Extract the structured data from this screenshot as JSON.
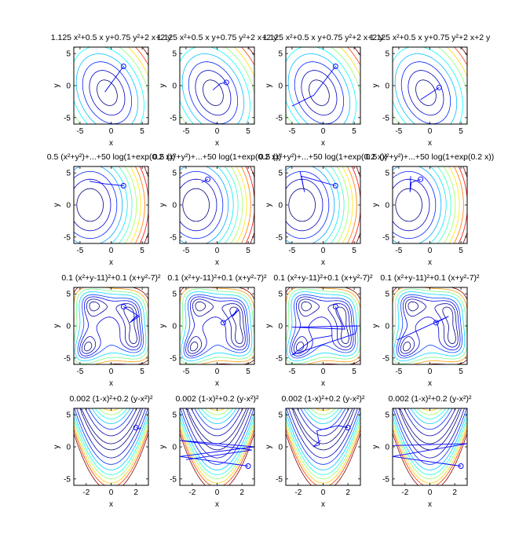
{
  "chart_data": {
    "type": "line",
    "layout": "4x4 grid of contour plots with optimizer paths",
    "colors": {
      "path": "#0000ff",
      "frame": "#000000",
      "contour_colormap": [
        "#000080",
        "#0000ff",
        "#00bfff",
        "#00ffff",
        "#7fff7f",
        "#ffff00",
        "#ff7f00",
        "#ff0000",
        "#800000"
      ]
    },
    "rows": [
      {
        "function_key": "quadratic",
        "title": "1.125 x²+0.5 x y+0.75 y²+2 x+2 y",
        "xlim": [
          -6,
          6
        ],
        "ylim": [
          -6,
          6
        ],
        "xticks": [
          -5,
          0,
          5
        ],
        "yticks": [
          -5,
          0,
          5
        ]
      },
      {
        "function_key": "logexp",
        "title": "0.5 (x²+y²)+...+50 log(1+exp(0.2 x))",
        "xlim": [
          -6,
          6
        ],
        "ylim": [
          -6,
          6
        ],
        "xticks": [
          -5,
          0,
          5
        ],
        "yticks": [
          -5,
          0,
          5
        ]
      },
      {
        "function_key": "himmelblau",
        "title": "0.1 (x²+y-11)²+0.1 (x+y²-7)²",
        "xlim": [
          -6,
          6
        ],
        "ylim": [
          -6,
          6
        ],
        "xticks": [
          -5,
          0,
          5
        ],
        "yticks": [
          -5,
          0,
          5
        ]
      },
      {
        "function_key": "rosenbrock",
        "title": "0.002 (1-x)²+0.2 (y-x²)²",
        "xlim": [
          -3,
          3
        ],
        "ylim": [
          -6,
          6
        ],
        "xticks": [
          -2,
          0,
          2
        ],
        "yticks": [
          -5,
          0,
          5
        ]
      }
    ],
    "xlabel": "x",
    "ylabel": "y",
    "paths": [
      [
        {
          "start": [
            2,
            3
          ],
          "points": [
            [
              2,
              3
            ],
            [
              -1,
              -1
            ]
          ]
        },
        {
          "start": [
            1.5,
            0.5
          ],
          "points": [
            [
              1.5,
              0.5
            ],
            [
              0.5,
              0.3
            ],
            [
              -0.7,
              -0.7
            ]
          ]
        },
        {
          "start": [
            2,
            3
          ],
          "points": [
            [
              2,
              3
            ],
            [
              -1.5,
              -1.5
            ],
            [
              -5,
              -3.2
            ]
          ]
        },
        {
          "start": [
            1.5,
            -0.3
          ],
          "points": [
            [
              1.5,
              -0.3
            ],
            [
              -1.5,
              -2.2
            ]
          ]
        }
      ],
      [
        {
          "start": [
            2,
            3
          ],
          "points": [
            [
              2,
              3
            ],
            [
              -1,
              3.3
            ],
            [
              -3.5,
              3.7
            ]
          ]
        },
        {
          "start": [
            -1.5,
            4
          ],
          "points": [
            [
              -1.5,
              4
            ],
            [
              -2.5,
              3.5
            ]
          ]
        },
        {
          "start": [
            2,
            3
          ],
          "points": [
            [
              2,
              3
            ],
            [
              -3.5,
              4.5
            ],
            [
              -3,
              2
            ],
            [
              -3.7,
              5.2
            ]
          ]
        },
        {
          "start": [
            -1.5,
            4
          ],
          "points": [
            [
              -1.5,
              4
            ],
            [
              -3,
              3.5
            ],
            [
              -3.2,
              2
            ],
            [
              -3.1,
              4.5
            ]
          ]
        }
      ],
      [
        {
          "start": [
            2,
            3
          ],
          "points": [
            [
              2,
              3
            ],
            [
              4.5,
              1.5
            ],
            [
              3,
              0.5
            ],
            [
              4.3,
              1.7
            ],
            [
              3.3,
              0.8
            ],
            [
              4.1,
              1.6
            ]
          ]
        },
        {
          "start": [
            1,
            0.5
          ],
          "points": [
            [
              1,
              0.5
            ],
            [
              3.5,
              2.5
            ],
            [
              2.5,
              1.5
            ],
            [
              3.3,
              2.7
            ]
          ]
        },
        {
          "start": [
            2,
            3
          ],
          "points": [
            [
              2,
              3
            ],
            [
              3.5,
              -0.5
            ],
            [
              -5,
              -0.2
            ],
            [
              5.5,
              0
            ],
            [
              5.2,
              -1.2
            ],
            [
              -5,
              -4.5
            ],
            [
              -1.5,
              -2
            ],
            [
              1.5,
              -1.5
            ]
          ]
        },
        {
          "start": [
            1,
            0.5
          ],
          "points": [
            [
              1,
              0.5
            ],
            [
              3,
              1.5
            ],
            [
              -5.3,
              -2.2
            ]
          ]
        }
      ],
      [
        {
          "start": [
            2,
            3
          ],
          "points": [
            [
              2,
              3
            ],
            [
              2.3,
              2.8
            ],
            [
              2.4,
              3.1
            ]
          ]
        },
        {
          "start": [
            2.5,
            -3
          ],
          "points": [
            [
              2.5,
              -3
            ],
            [
              -3,
              -1.5
            ],
            [
              3,
              0
            ],
            [
              -3,
              1
            ],
            [
              2.8,
              -0.5
            ],
            [
              -2.5,
              -2
            ]
          ]
        },
        {
          "start": [
            2,
            3
          ],
          "points": [
            [
              2,
              3
            ],
            [
              1.2,
              3.3
            ],
            [
              -0.5,
              2.5
            ],
            [
              -0.3,
              0.3
            ],
            [
              -0.8,
              0
            ],
            [
              -0.2,
              1
            ]
          ]
        },
        {
          "start": [
            2.5,
            -3
          ],
          "points": [
            [
              2.5,
              -3
            ],
            [
              -3,
              -1.5
            ],
            [
              3,
              0.5
            ],
            [
              -3,
              0.2
            ]
          ]
        }
      ]
    ]
  }
}
